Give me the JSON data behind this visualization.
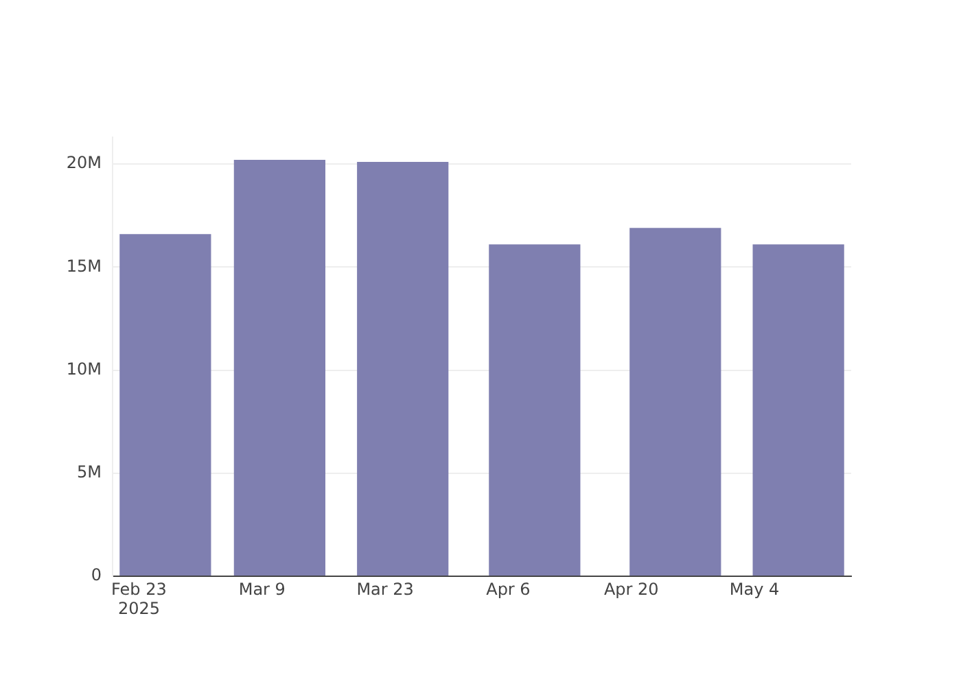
{
  "chart_data": {
    "type": "bar",
    "x": [
      "2025-02-26",
      "2025-03-11",
      "2025-03-25",
      "2025-04-09",
      "2025-04-25",
      "2025-05-09"
    ],
    "series": [
      {
        "color": "#7f7fb0",
        "values": [
          16600000,
          20200000,
          20100000,
          16100000,
          16900000,
          16100000
        ]
      }
    ],
    "xlim": [
      "2025-02-20",
      "2025-05-15"
    ],
    "xticks": [
      {
        "value": "2025-02-23",
        "label": "Feb 23\n2025"
      },
      {
        "value": "2025-03-09",
        "label": "Mar 9"
      },
      {
        "value": "2025-03-23",
        "label": "Mar 23"
      },
      {
        "value": "2025-04-06",
        "label": "Apr 6"
      },
      {
        "value": "2025-04-20",
        "label": "Apr 20"
      },
      {
        "value": "2025-05-04",
        "label": "May 4"
      }
    ],
    "ylim": [
      0,
      21300000
    ],
    "yticks": [
      {
        "value": 0,
        "label": "0"
      },
      {
        "value": 5000000,
        "label": "5M"
      },
      {
        "value": 10000000,
        "label": "10M"
      },
      {
        "value": 15000000,
        "label": "15M"
      },
      {
        "value": 20000000,
        "label": "20M"
      }
    ],
    "grid": "y"
  }
}
